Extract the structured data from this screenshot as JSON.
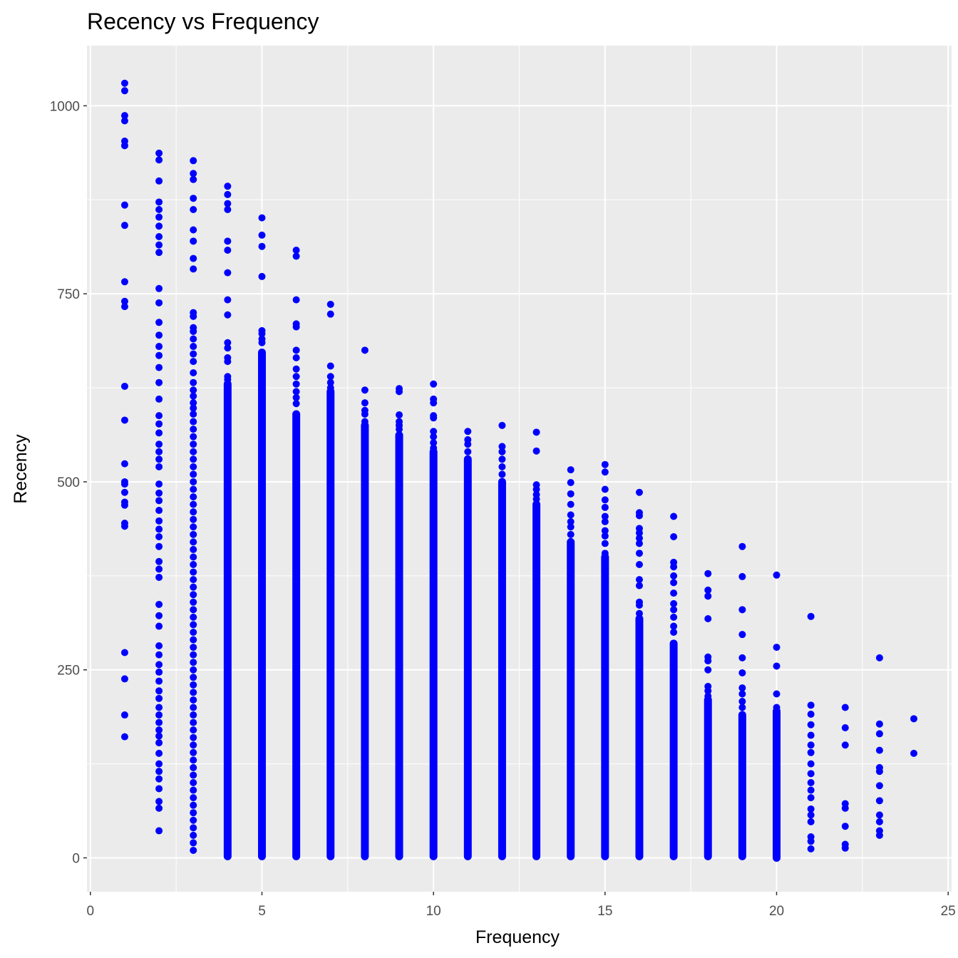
{
  "chart_data": {
    "type": "scatter",
    "title": "Recency vs Frequency",
    "xlabel": "Frequency",
    "ylabel": "Recency",
    "xlim": [
      -0.1,
      25.1
    ],
    "ylim": [
      -45,
      1080
    ],
    "x_ticks": [
      0,
      5,
      10,
      15,
      20,
      25
    ],
    "x_tick_labels": [
      "0",
      "5",
      "10",
      "15",
      "20",
      "25"
    ],
    "y_ticks": [
      0,
      250,
      500,
      750,
      1000
    ],
    "y_tick_labels": [
      "0",
      "250",
      "500",
      "750",
      "1000"
    ],
    "x_minor_ticks": [
      2.5,
      7.5,
      12.5,
      17.5,
      22.5
    ],
    "y_minor_ticks": [
      125,
      375,
      625,
      875
    ],
    "grid": true,
    "point_color": "#0000ff",
    "panel_background": "#ebebeb",
    "grid_color": "#ffffff",
    "series": [
      {
        "points": [
          [
            1,
            1030
          ],
          [
            1,
            1020
          ],
          [
            1,
            987
          ],
          [
            1,
            980
          ],
          [
            1,
            953
          ],
          [
            1,
            947
          ],
          [
            1,
            868
          ],
          [
            1,
            841
          ],
          [
            1,
            766
          ],
          [
            1,
            740
          ],
          [
            1,
            733
          ],
          [
            1,
            627
          ],
          [
            1,
            582
          ],
          [
            1,
            524
          ],
          [
            1,
            500
          ],
          [
            1,
            497
          ],
          [
            1,
            486
          ],
          [
            1,
            473
          ],
          [
            1,
            469
          ],
          [
            1,
            445
          ],
          [
            1,
            441
          ],
          [
            1,
            273
          ],
          [
            1,
            238
          ],
          [
            1,
            190
          ],
          [
            1,
            161
          ],
          [
            2,
            937
          ],
          [
            2,
            928
          ],
          [
            2,
            900
          ],
          [
            2,
            872
          ],
          [
            2,
            862
          ],
          [
            2,
            852
          ],
          [
            2,
            840
          ],
          [
            2,
            826
          ],
          [
            2,
            815
          ],
          [
            2,
            805
          ],
          [
            2,
            757
          ],
          [
            2,
            738
          ],
          [
            2,
            712
          ],
          [
            2,
            695
          ],
          [
            2,
            680
          ],
          [
            2,
            668
          ],
          [
            2,
            652
          ],
          [
            2,
            632
          ],
          [
            2,
            610
          ],
          [
            2,
            588
          ],
          [
            2,
            577
          ],
          [
            2,
            565
          ],
          [
            2,
            550
          ],
          [
            2,
            540
          ],
          [
            2,
            530
          ],
          [
            2,
            520
          ],
          [
            2,
            497
          ],
          [
            2,
            485
          ],
          [
            2,
            475
          ],
          [
            2,
            462
          ],
          [
            2,
            448
          ],
          [
            2,
            437
          ],
          [
            2,
            427
          ],
          [
            2,
            414
          ],
          [
            2,
            394
          ],
          [
            2,
            384
          ],
          [
            2,
            373
          ],
          [
            2,
            337
          ],
          [
            2,
            322
          ],
          [
            2,
            308
          ],
          [
            2,
            282
          ],
          [
            2,
            270
          ],
          [
            2,
            257
          ],
          [
            2,
            247
          ],
          [
            2,
            235
          ],
          [
            2,
            222
          ],
          [
            2,
            212
          ],
          [
            2,
            200
          ],
          [
            2,
            190
          ],
          [
            2,
            180
          ],
          [
            2,
            170
          ],
          [
            2,
            162
          ],
          [
            2,
            153
          ],
          [
            2,
            139
          ],
          [
            2,
            125
          ],
          [
            2,
            115
          ],
          [
            2,
            105
          ],
          [
            2,
            92
          ],
          [
            2,
            75
          ],
          [
            2,
            66
          ],
          [
            2,
            36
          ],
          [
            3,
            927
          ],
          [
            3,
            910
          ],
          [
            3,
            902
          ],
          [
            3,
            877
          ],
          [
            3,
            862
          ],
          [
            3,
            835
          ],
          [
            3,
            820
          ],
          [
            3,
            797
          ],
          [
            3,
            783
          ],
          [
            3,
            725
          ],
          [
            3,
            720
          ],
          [
            3,
            705
          ],
          [
            3,
            700
          ],
          [
            3,
            690
          ],
          [
            3,
            680
          ],
          [
            3,
            670
          ],
          [
            3,
            660
          ],
          [
            3,
            645
          ],
          [
            3,
            632
          ],
          [
            3,
            622
          ],
          [
            3,
            614
          ],
          [
            3,
            605
          ],
          [
            3,
            598
          ],
          [
            3,
            590
          ],
          [
            3,
            580
          ],
          [
            3,
            570
          ],
          [
            3,
            560
          ],
          [
            3,
            550
          ],
          [
            3,
            540
          ],
          [
            3,
            530
          ],
          [
            3,
            520
          ],
          [
            3,
            510
          ],
          [
            3,
            500
          ],
          [
            3,
            490
          ],
          [
            3,
            480
          ],
          [
            3,
            470
          ],
          [
            3,
            460
          ],
          [
            3,
            450
          ],
          [
            3,
            440
          ],
          [
            3,
            430
          ],
          [
            3,
            420
          ],
          [
            3,
            410
          ],
          [
            3,
            400
          ],
          [
            3,
            390
          ],
          [
            3,
            380
          ],
          [
            3,
            370
          ],
          [
            3,
            360
          ],
          [
            3,
            350
          ],
          [
            3,
            340
          ],
          [
            3,
            330
          ],
          [
            3,
            320
          ],
          [
            3,
            310
          ],
          [
            3,
            300
          ],
          [
            3,
            290
          ],
          [
            3,
            280
          ],
          [
            3,
            270
          ],
          [
            3,
            260
          ],
          [
            3,
            250
          ],
          [
            3,
            240
          ],
          [
            3,
            230
          ],
          [
            3,
            220
          ],
          [
            3,
            210
          ],
          [
            3,
            200
          ],
          [
            3,
            190
          ],
          [
            3,
            180
          ],
          [
            3,
            170
          ],
          [
            3,
            160
          ],
          [
            3,
            150
          ],
          [
            3,
            140
          ],
          [
            3,
            130
          ],
          [
            3,
            120
          ],
          [
            3,
            110
          ],
          [
            3,
            100
          ],
          [
            3,
            90
          ],
          [
            3,
            80
          ],
          [
            3,
            70
          ],
          [
            3,
            60
          ],
          [
            3,
            50
          ],
          [
            3,
            40
          ],
          [
            3,
            30
          ],
          [
            3,
            20
          ],
          [
            3,
            10
          ],
          [
            4,
            893
          ],
          [
            4,
            882
          ],
          [
            4,
            870
          ],
          [
            4,
            862
          ],
          [
            4,
            820
          ],
          [
            4,
            808
          ],
          [
            4,
            778
          ],
          [
            4,
            742
          ],
          [
            4,
            722
          ],
          [
            4,
            685
          ],
          [
            4,
            678
          ],
          [
            4,
            665
          ],
          [
            4,
            660
          ],
          [
            4,
            640
          ],
          [
            4,
            636
          ]
        ]
      }
    ],
    "columns": [
      {
        "x": 4,
        "from": 2,
        "to": 630
      },
      {
        "x": 5,
        "from": 2,
        "to": 672
      },
      {
        "x": 6,
        "from": 2,
        "to": 590
      },
      {
        "x": 7,
        "from": 2,
        "to": 620
      },
      {
        "x": 8,
        "from": 2,
        "to": 575
      },
      {
        "x": 9,
        "from": 2,
        "to": 562
      },
      {
        "x": 10,
        "from": 2,
        "to": 540
      },
      {
        "x": 11,
        "from": 2,
        "to": 530
      },
      {
        "x": 12,
        "from": 2,
        "to": 500
      },
      {
        "x": 13,
        "from": 2,
        "to": 470
      },
      {
        "x": 14,
        "from": 2,
        "to": 420
      },
      {
        "x": 15,
        "from": 2,
        "to": 400
      },
      {
        "x": 16,
        "from": 2,
        "to": 318
      },
      {
        "x": 17,
        "from": 2,
        "to": 285
      },
      {
        "x": 18,
        "from": 2,
        "to": 210
      },
      {
        "x": 19,
        "from": 2,
        "to": 190
      },
      {
        "x": 20,
        "from": 0,
        "to": 195
      }
    ],
    "extra_points": [
      [
        5,
        851
      ],
      [
        5,
        828
      ],
      [
        5,
        813
      ],
      [
        5,
        773
      ],
      [
        5,
        701
      ],
      [
        5,
        697
      ],
      [
        5,
        690
      ],
      [
        5,
        685
      ],
      [
        6,
        808
      ],
      [
        6,
        800
      ],
      [
        6,
        742
      ],
      [
        6,
        710
      ],
      [
        6,
        706
      ],
      [
        6,
        675
      ],
      [
        6,
        665
      ],
      [
        6,
        650
      ],
      [
        6,
        640
      ],
      [
        6,
        630
      ],
      [
        6,
        620
      ],
      [
        6,
        612
      ],
      [
        6,
        604
      ],
      [
        7,
        736
      ],
      [
        7,
        723
      ],
      [
        7,
        654
      ],
      [
        7,
        640
      ],
      [
        7,
        632
      ],
      [
        7,
        625
      ],
      [
        8,
        675
      ],
      [
        8,
        622
      ],
      [
        8,
        605
      ],
      [
        8,
        595
      ],
      [
        8,
        590
      ],
      [
        8,
        580
      ],
      [
        9,
        624
      ],
      [
        9,
        620
      ],
      [
        9,
        589
      ],
      [
        9,
        580
      ],
      [
        9,
        575
      ],
      [
        9,
        570
      ],
      [
        10,
        630
      ],
      [
        10,
        610
      ],
      [
        10,
        605
      ],
      [
        10,
        588
      ],
      [
        10,
        585
      ],
      [
        10,
        567
      ],
      [
        10,
        560
      ],
      [
        10,
        552
      ],
      [
        10,
        545
      ],
      [
        11,
        567
      ],
      [
        11,
        556
      ],
      [
        11,
        550
      ],
      [
        11,
        540
      ],
      [
        12,
        575
      ],
      [
        12,
        547
      ],
      [
        12,
        540
      ],
      [
        12,
        530
      ],
      [
        12,
        520
      ],
      [
        12,
        510
      ],
      [
        13,
        566
      ],
      [
        13,
        541
      ],
      [
        13,
        496
      ],
      [
        13,
        490
      ],
      [
        13,
        483
      ],
      [
        13,
        477
      ],
      [
        14,
        516
      ],
      [
        14,
        499
      ],
      [
        14,
        484
      ],
      [
        14,
        470
      ],
      [
        14,
        456
      ],
      [
        14,
        447
      ],
      [
        14,
        440
      ],
      [
        14,
        430
      ],
      [
        15,
        523
      ],
      [
        15,
        513
      ],
      [
        15,
        490
      ],
      [
        15,
        476
      ],
      [
        15,
        466
      ],
      [
        15,
        454
      ],
      [
        15,
        447
      ],
      [
        15,
        435
      ],
      [
        15,
        428
      ],
      [
        15,
        418
      ],
      [
        15,
        405
      ],
      [
        16,
        486
      ],
      [
        16,
        459
      ],
      [
        16,
        455
      ],
      [
        16,
        438
      ],
      [
        16,
        432
      ],
      [
        16,
        425
      ],
      [
        16,
        418
      ],
      [
        16,
        405
      ],
      [
        16,
        390
      ],
      [
        16,
        370
      ],
      [
        16,
        362
      ],
      [
        16,
        340
      ],
      [
        16,
        336
      ],
      [
        16,
        325
      ],
      [
        17,
        454
      ],
      [
        17,
        427
      ],
      [
        17,
        393
      ],
      [
        17,
        387
      ],
      [
        17,
        375
      ],
      [
        17,
        366
      ],
      [
        17,
        352
      ],
      [
        17,
        338
      ],
      [
        17,
        330
      ],
      [
        17,
        320
      ],
      [
        17,
        308
      ],
      [
        17,
        300
      ],
      [
        18,
        378
      ],
      [
        18,
        356
      ],
      [
        18,
        348
      ],
      [
        18,
        318
      ],
      [
        18,
        267
      ],
      [
        18,
        262
      ],
      [
        18,
        250
      ],
      [
        18,
        228
      ],
      [
        18,
        222
      ],
      [
        18,
        215
      ],
      [
        19,
        414
      ],
      [
        19,
        374
      ],
      [
        19,
        330
      ],
      [
        19,
        297
      ],
      [
        19,
        266
      ],
      [
        19,
        246
      ],
      [
        19,
        226
      ],
      [
        19,
        218
      ],
      [
        19,
        208
      ],
      [
        19,
        200
      ],
      [
        20,
        376
      ],
      [
        20,
        280
      ],
      [
        20,
        255
      ],
      [
        20,
        218
      ],
      [
        20,
        200
      ],
      [
        21,
        321
      ],
      [
        21,
        203
      ],
      [
        21,
        191
      ],
      [
        21,
        177
      ],
      [
        21,
        163
      ],
      [
        21,
        150
      ],
      [
        21,
        140
      ],
      [
        21,
        125
      ],
      [
        21,
        112
      ],
      [
        21,
        100
      ],
      [
        21,
        90
      ],
      [
        21,
        80
      ],
      [
        21,
        65
      ],
      [
        21,
        57
      ],
      [
        21,
        48
      ],
      [
        21,
        28
      ],
      [
        21,
        22
      ],
      [
        21,
        12
      ],
      [
        22,
        200
      ],
      [
        22,
        173
      ],
      [
        22,
        150
      ],
      [
        22,
        72
      ],
      [
        22,
        66
      ],
      [
        22,
        42
      ],
      [
        22,
        18
      ],
      [
        22,
        13
      ],
      [
        23,
        266
      ],
      [
        23,
        178
      ],
      [
        23,
        165
      ],
      [
        23,
        143
      ],
      [
        23,
        120
      ],
      [
        23,
        115
      ],
      [
        23,
        96
      ],
      [
        23,
        76
      ],
      [
        23,
        57
      ],
      [
        23,
        48
      ],
      [
        23,
        36
      ],
      [
        23,
        30
      ],
      [
        24,
        185
      ],
      [
        24,
        139
      ]
    ]
  }
}
